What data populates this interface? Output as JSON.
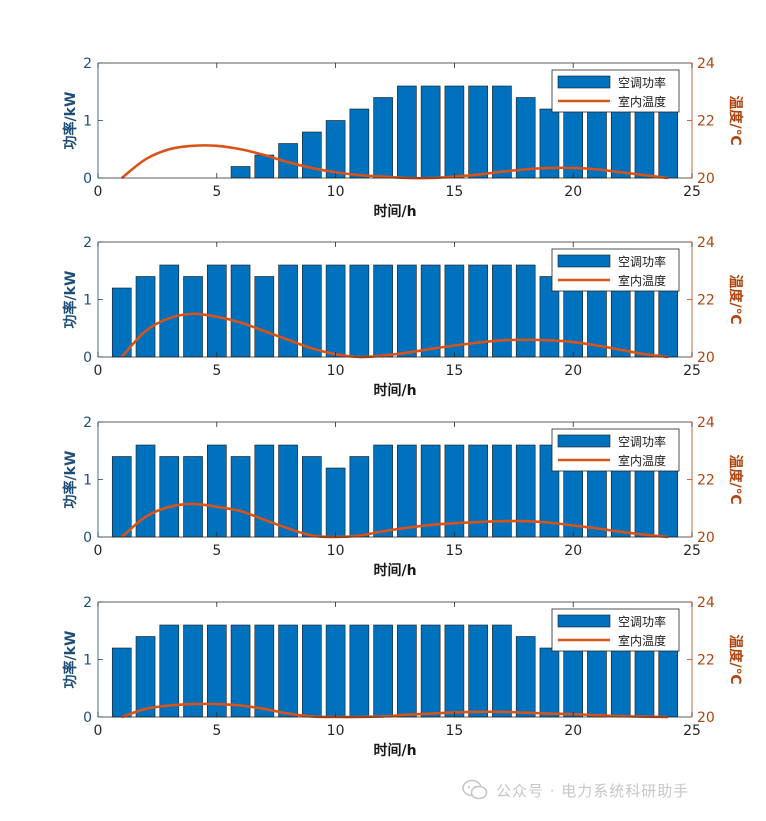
{
  "colors": {
    "bar": "#0072BD",
    "line": "#D95319",
    "left_axis": "#1f4e79",
    "right_axis": "#b04510"
  },
  "chart_data": [
    {
      "type": "bar",
      "xlabel": "时间/h",
      "ylabel_left": "功率/kW",
      "ylabel_right": "温度/℃",
      "xlim": [
        0,
        25
      ],
      "ylim_left": [
        0,
        2
      ],
      "ylim_right": [
        20,
        24
      ],
      "xticks": [
        "0",
        "5",
        "10",
        "15",
        "20",
        "25"
      ],
      "yticks_left": [
        "0",
        "1",
        "2"
      ],
      "yticks_right": [
        "20",
        "22",
        "24"
      ],
      "legend": {
        "position": "top-right",
        "entries": [
          "空调功率",
          "室内温度"
        ]
      },
      "x": [
        1,
        2,
        3,
        4,
        5,
        6,
        7,
        8,
        9,
        10,
        11,
        12,
        13,
        14,
        15,
        16,
        17,
        18,
        19,
        20,
        21,
        22,
        23,
        24
      ],
      "series": [
        {
          "name": "空调功率",
          "axis": "left",
          "kind": "bar",
          "values": [
            0,
            0,
            0,
            0,
            0,
            0.2,
            0.4,
            0.6,
            0.8,
            1.0,
            1.2,
            1.4,
            1.6,
            1.6,
            1.6,
            1.6,
            1.6,
            1.4,
            1.2,
            1.2,
            1.2,
            1.2,
            1.2,
            1.2
          ]
        },
        {
          "name": "室内温度",
          "axis": "right",
          "kind": "line",
          "values": [
            20.0,
            20.65,
            21.0,
            21.12,
            21.12,
            21.0,
            20.8,
            20.55,
            20.35,
            20.2,
            20.1,
            20.05,
            20.0,
            20.0,
            20.05,
            20.12,
            20.22,
            20.3,
            20.35,
            20.35,
            20.3,
            20.2,
            20.1,
            20.0
          ]
        }
      ]
    },
    {
      "type": "bar",
      "xlabel": "时间/h",
      "ylabel_left": "功率/kW",
      "ylabel_right": "温度/℃",
      "xlim": [
        0,
        25
      ],
      "ylim_left": [
        0,
        2
      ],
      "ylim_right": [
        20,
        24
      ],
      "xticks": [
        "0",
        "5",
        "10",
        "15",
        "20",
        "25"
      ],
      "yticks_left": [
        "0",
        "1",
        "2"
      ],
      "yticks_right": [
        "20",
        "22",
        "24"
      ],
      "legend": {
        "position": "top-right",
        "entries": [
          "空调功率",
          "室内温度"
        ]
      },
      "x": [
        1,
        2,
        3,
        4,
        5,
        6,
        7,
        8,
        9,
        10,
        11,
        12,
        13,
        14,
        15,
        16,
        17,
        18,
        19,
        20,
        21,
        22,
        23,
        24
      ],
      "series": [
        {
          "name": "空调功率",
          "axis": "left",
          "kind": "bar",
          "values": [
            1.2,
            1.4,
            1.6,
            1.4,
            1.6,
            1.6,
            1.4,
            1.6,
            1.6,
            1.6,
            1.6,
            1.6,
            1.6,
            1.6,
            1.6,
            1.6,
            1.6,
            1.6,
            1.4,
            1.4,
            1.4,
            1.4,
            1.4,
            1.4
          ]
        },
        {
          "name": "室内温度",
          "axis": "right",
          "kind": "line",
          "values": [
            20.0,
            20.9,
            21.35,
            21.5,
            21.4,
            21.2,
            20.9,
            20.6,
            20.3,
            20.1,
            20.0,
            20.05,
            20.15,
            20.28,
            20.4,
            20.5,
            20.58,
            20.6,
            20.58,
            20.52,
            20.4,
            20.25,
            20.1,
            20.0
          ]
        }
      ]
    },
    {
      "type": "bar",
      "xlabel": "时间/h",
      "ylabel_left": "功率/kW",
      "ylabel_right": "温度/℃",
      "xlim": [
        0,
        25
      ],
      "ylim_left": [
        0,
        2
      ],
      "ylim_right": [
        20,
        24
      ],
      "xticks": [
        "0",
        "5",
        "10",
        "15",
        "20",
        "25"
      ],
      "yticks_left": [
        "0",
        "1",
        "2"
      ],
      "yticks_right": [
        "20",
        "22",
        "24"
      ],
      "legend": {
        "position": "top-right",
        "entries": [
          "空调功率",
          "室内温度"
        ]
      },
      "x": [
        1,
        2,
        3,
        4,
        5,
        6,
        7,
        8,
        9,
        10,
        11,
        12,
        13,
        14,
        15,
        16,
        17,
        18,
        19,
        20,
        21,
        22,
        23,
        24
      ],
      "series": [
        {
          "name": "空调功率",
          "axis": "left",
          "kind": "bar",
          "values": [
            1.4,
            1.6,
            1.4,
            1.4,
            1.6,
            1.4,
            1.6,
            1.6,
            1.4,
            1.2,
            1.4,
            1.6,
            1.6,
            1.6,
            1.6,
            1.6,
            1.6,
            1.6,
            1.6,
            1.6,
            1.6,
            1.6,
            1.6,
            1.6
          ]
        },
        {
          "name": "室内温度",
          "axis": "right",
          "kind": "line",
          "values": [
            20.0,
            20.7,
            21.05,
            21.15,
            21.05,
            20.9,
            20.6,
            20.3,
            20.05,
            20.0,
            20.05,
            20.2,
            20.32,
            20.42,
            20.48,
            20.52,
            20.55,
            20.55,
            20.5,
            20.4,
            20.3,
            20.18,
            20.08,
            20.0
          ]
        }
      ]
    },
    {
      "type": "bar",
      "xlabel": "时间/h",
      "ylabel_left": "功率/kW",
      "ylabel_right": "温度/℃",
      "xlim": [
        0,
        25
      ],
      "ylim_left": [
        0,
        2
      ],
      "ylim_right": [
        20,
        24
      ],
      "xticks": [
        "0",
        "5",
        "10",
        "15",
        "20",
        "25"
      ],
      "yticks_left": [
        "0",
        "1",
        "2"
      ],
      "yticks_right": [
        "20",
        "22",
        "24"
      ],
      "legend": {
        "position": "top-right",
        "entries": [
          "空调功率",
          "室内温度"
        ]
      },
      "x": [
        1,
        2,
        3,
        4,
        5,
        6,
        7,
        8,
        9,
        10,
        11,
        12,
        13,
        14,
        15,
        16,
        17,
        18,
        19,
        20,
        21,
        22,
        23,
        24
      ],
      "series": [
        {
          "name": "空调功率",
          "axis": "left",
          "kind": "bar",
          "values": [
            1.2,
            1.4,
            1.6,
            1.6,
            1.6,
            1.6,
            1.6,
            1.6,
            1.6,
            1.6,
            1.6,
            1.6,
            1.6,
            1.6,
            1.6,
            1.6,
            1.6,
            1.4,
            1.2,
            1.2,
            1.2,
            1.2,
            1.2,
            1.2
          ]
        },
        {
          "name": "室内温度",
          "axis": "right",
          "kind": "line",
          "values": [
            20.0,
            20.28,
            20.4,
            20.45,
            20.45,
            20.4,
            20.28,
            20.12,
            20.02,
            20.0,
            20.0,
            20.02,
            20.08,
            20.12,
            20.16,
            20.18,
            20.18,
            20.15,
            20.12,
            20.1,
            20.06,
            20.03,
            20.01,
            20.0
          ]
        }
      ]
    }
  ],
  "watermark": {
    "text": "公众号 · 电力系统科研助手"
  }
}
